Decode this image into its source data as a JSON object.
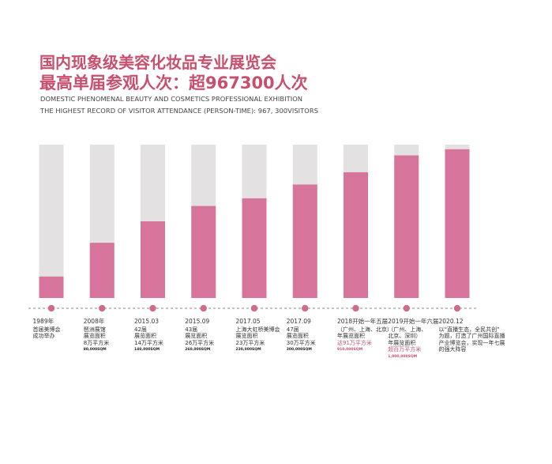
{
  "header": {
    "title_line1": "国内现象级美容化妆品专业展览会",
    "title_line2": "最高单届参观人次：超967300人次",
    "subtitle_line1": "DOMESTIC PHENOMENAL BEAUTY AND COSMETICS PROFESSIONAL EXHIBITION",
    "subtitle_line2": "THE HIGHEST RECORD OF VISITOR ATTENDANCE (PERSON-TIME): 967, 300VISITORS"
  },
  "colors": {
    "bar": "#d6749b",
    "track": "#e3e1e2",
    "dot": "#cf6b8e",
    "axis": "#8a8a8a",
    "accent": "#c8506e"
  },
  "chart_data": {
    "type": "bar",
    "categories": [
      "1989年",
      "2008年",
      "2015.03",
      "2015.09",
      "2017.05",
      "2017.09",
      "2018开始一年五届",
      "2019开始一年六届",
      "2020.12"
    ],
    "values": [
      0.14,
      0.36,
      0.5,
      0.6,
      0.65,
      0.74,
      0.82,
      0.93,
      0.97
    ],
    "value_unit": "fraction of full bar height (no numeric axis printed)",
    "ylim": [
      0,
      1
    ],
    "grid": false,
    "legend": "none",
    "annotations": [
      {
        "date": "1989年",
        "lines": [
          "首届美博会",
          "成功举办"
        ],
        "sqm": ""
      },
      {
        "date": "2008年",
        "lines": [
          "琶洲展馆",
          "展览面积",
          "8万平方米"
        ],
        "sqm": "80,000SQM"
      },
      {
        "date": "2015.03",
        "lines": [
          "42届",
          "展览面积",
          "14万平方米"
        ],
        "sqm": "140,000SQM"
      },
      {
        "date": "2015.09",
        "lines": [
          "43届",
          "展览面积",
          "26万平方米"
        ],
        "sqm": "260,000SQM"
      },
      {
        "date": "2017.05",
        "lines": [
          "上海大虹桥美博会",
          "展览面积",
          "23万平方米"
        ],
        "sqm": "230,000SQM"
      },
      {
        "date": "2017.09",
        "lines": [
          "47届",
          "展览面积",
          "30万平方米"
        ],
        "sqm": "300,000SQM"
      },
      {
        "date": "2018开始一年五届",
        "lines": [
          "（广州、上海、北京）",
          "年展览面积",
          "达91万平方米"
        ],
        "sqm": "910,000SQM",
        "red": true
      },
      {
        "date": "2019开始一年六届",
        "lines": [
          "（广州、上海、",
          "北京、深圳）",
          "年展览面积",
          "超百万平方米"
        ],
        "sqm": "1,000,000SQM",
        "red": true
      },
      {
        "date": "2020.12",
        "lines": [
          "以“直播生态，全民共创”",
          "为题，打造了广州国际直播",
          "产业博览会，实现一年七展",
          "的强大阵容"
        ],
        "sqm": ""
      }
    ]
  }
}
